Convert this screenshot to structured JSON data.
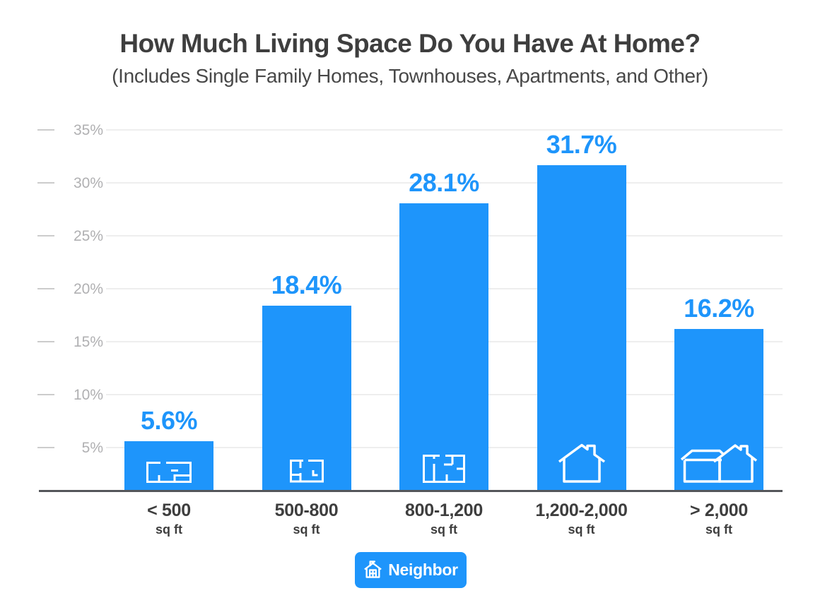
{
  "title": "How Much Living Space Do You Have At Home?",
  "subtitle": "(Includes Single Family Homes, Townhouses, Apartments, and Other)",
  "colors": {
    "bar": "#1E95FB",
    "value_label": "#1E95FB",
    "title": "#3E3E3E",
    "subtitle": "#484848",
    "x_label": "#3E3E3E",
    "y_label": "#B0B0B2",
    "gridline": "#EEEEEE",
    "tick": "#CCCCCC",
    "baseline": "#54565A",
    "badge_bg": "#1E95FB",
    "badge_text": "#FFFFFF",
    "bar_icon": "#FFFFFF"
  },
  "chart_data": {
    "type": "bar",
    "title": "How Much Living Space Do You Have At Home?",
    "subtitle": "(Includes Single Family Homes, Townhouses, Apartments, and Other)",
    "categories": [
      "< 500",
      "500-800",
      "800-1,200",
      "1,200-2,000",
      "> 2,000"
    ],
    "category_unit": "sq ft",
    "values": [
      5.6,
      18.4,
      28.1,
      31.7,
      16.2
    ],
    "value_labels": [
      "5.6%",
      "18.4%",
      "28.1%",
      "31.7%",
      "16.2%"
    ],
    "bar_icons": [
      "studio-floorplan-icon",
      "one-bedroom-floorplan-icon",
      "two-bedroom-floorplan-icon",
      "house-icon",
      "house-with-garage-icon"
    ],
    "xlabel": "",
    "ylabel": "",
    "ylim": [
      0,
      35
    ],
    "y_ticks": [
      5,
      10,
      15,
      20,
      25,
      30,
      35
    ],
    "y_tick_labels": [
      "5%",
      "10%",
      "15%",
      "20%",
      "25%",
      "30%",
      "35%"
    ],
    "grid": true,
    "legend": false
  },
  "branding": {
    "name": "Neighbor",
    "icon": "neighbor-house-flag-icon"
  }
}
